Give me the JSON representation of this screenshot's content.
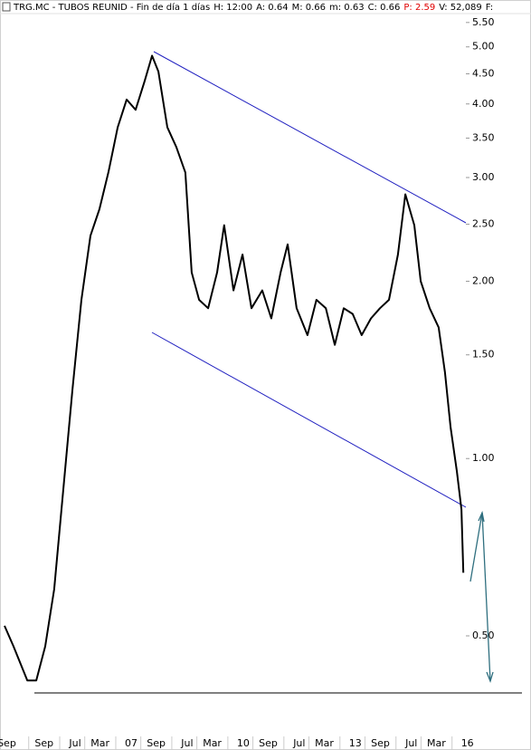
{
  "chart_data": {
    "type": "line",
    "title_parts": [
      {
        "text": "TRG.MC - TUBOS REUNID - Fin de día 1 días",
        "color": "#000000"
      },
      {
        "text": "H: 12:00",
        "color": "#000000"
      },
      {
        "text": "A: 0.64",
        "color": "#000000"
      },
      {
        "text": "M: 0.66",
        "color": "#000000"
      },
      {
        "text": "m: 0.63",
        "color": "#000000"
      },
      {
        "text": "C: 0.66",
        "color": "#000000"
      },
      {
        "text": "P: 2.59",
        "color": "#e00000"
      },
      {
        "text": "V: 52,089",
        "color": "#000000"
      },
      {
        "text": "F:",
        "color": "#000000"
      }
    ],
    "log_scale": true,
    "grid": false,
    "xlim": [
      2003.49,
      2017.46
    ],
    "ylim": [
      0.4,
      5.9
    ],
    "xticks": [
      {
        "value": 2003.67,
        "label": "Sep"
      },
      {
        "value": 2004.67,
        "label": "Sep"
      },
      {
        "value": 2005.5,
        "label": "Jul"
      },
      {
        "value": 2006.17,
        "label": "Mar"
      },
      {
        "value": 2007,
        "label": "07"
      },
      {
        "value": 2007.67,
        "label": "Sep"
      },
      {
        "value": 2008.5,
        "label": "Jul"
      },
      {
        "value": 2009.17,
        "label": "Mar"
      },
      {
        "value": 2010,
        "label": "10"
      },
      {
        "value": 2010.67,
        "label": "Sep"
      },
      {
        "value": 2011.5,
        "label": "Jul"
      },
      {
        "value": 2012.17,
        "label": "Mar"
      },
      {
        "value": 2013,
        "label": "13"
      },
      {
        "value": 2013.67,
        "label": "Sep"
      },
      {
        "value": 2014.5,
        "label": "Jul"
      },
      {
        "value": 2015.17,
        "label": "Mar"
      },
      {
        "value": 2016,
        "label": "16"
      }
    ],
    "yticks": [
      {
        "value": 0.5,
        "label": "0.50"
      },
      {
        "value": 1,
        "label": "1.00"
      },
      {
        "value": 1.5,
        "label": "1.50"
      },
      {
        "value": 2,
        "label": "2.00"
      },
      {
        "value": 2.5,
        "label": "2.50"
      },
      {
        "value": 3,
        "label": "3.00"
      },
      {
        "value": 3.5,
        "label": "3.50"
      },
      {
        "value": 4,
        "label": "4.00"
      },
      {
        "value": 4.5,
        "label": "4.50"
      },
      {
        "value": 5,
        "label": "5.00"
      },
      {
        "value": 5.5,
        "label": "5.50"
      }
    ],
    "series": [
      {
        "name": "TRG.MC",
        "color": "#000000",
        "x": [
          2003.61,
          2003.85,
          2004.22,
          2004.46,
          2004.7,
          2004.94,
          2005.18,
          2005.43,
          2005.67,
          2005.91,
          2006.15,
          2006.39,
          2006.64,
          2006.88,
          2007.12,
          2007.36,
          2007.56,
          2007.73,
          2007.97,
          2008.21,
          2008.45,
          2008.62,
          2008.82,
          2009.06,
          2009.3,
          2009.49,
          2009.74,
          2009.98,
          2010.22,
          2010.51,
          2010.75,
          2011.0,
          2011.19,
          2011.43,
          2011.72,
          2011.96,
          2012.21,
          2012.45,
          2012.69,
          2012.93,
          2013.17,
          2013.42,
          2013.66,
          2013.9,
          2014.14,
          2014.34,
          2014.58,
          2014.75,
          2014.99,
          2015.23,
          2015.4,
          2015.55,
          2015.72,
          2015.84,
          2015.89
        ],
        "values": [
          0.52,
          0.48,
          0.42,
          0.42,
          0.48,
          0.6,
          0.88,
          1.31,
          1.86,
          2.39,
          2.65,
          3.06,
          3.65,
          4.07,
          3.91,
          4.37,
          4.83,
          4.54,
          3.65,
          3.38,
          3.06,
          2.07,
          1.86,
          1.8,
          2.07,
          2.49,
          1.93,
          2.22,
          1.8,
          1.93,
          1.73,
          2.07,
          2.31,
          1.8,
          1.62,
          1.86,
          1.8,
          1.56,
          1.8,
          1.76,
          1.62,
          1.73,
          1.8,
          1.86,
          2.22,
          2.81,
          2.49,
          2.0,
          1.8,
          1.67,
          1.4,
          1.13,
          0.95,
          0.82,
          0.64
        ]
      }
    ]
  }
}
